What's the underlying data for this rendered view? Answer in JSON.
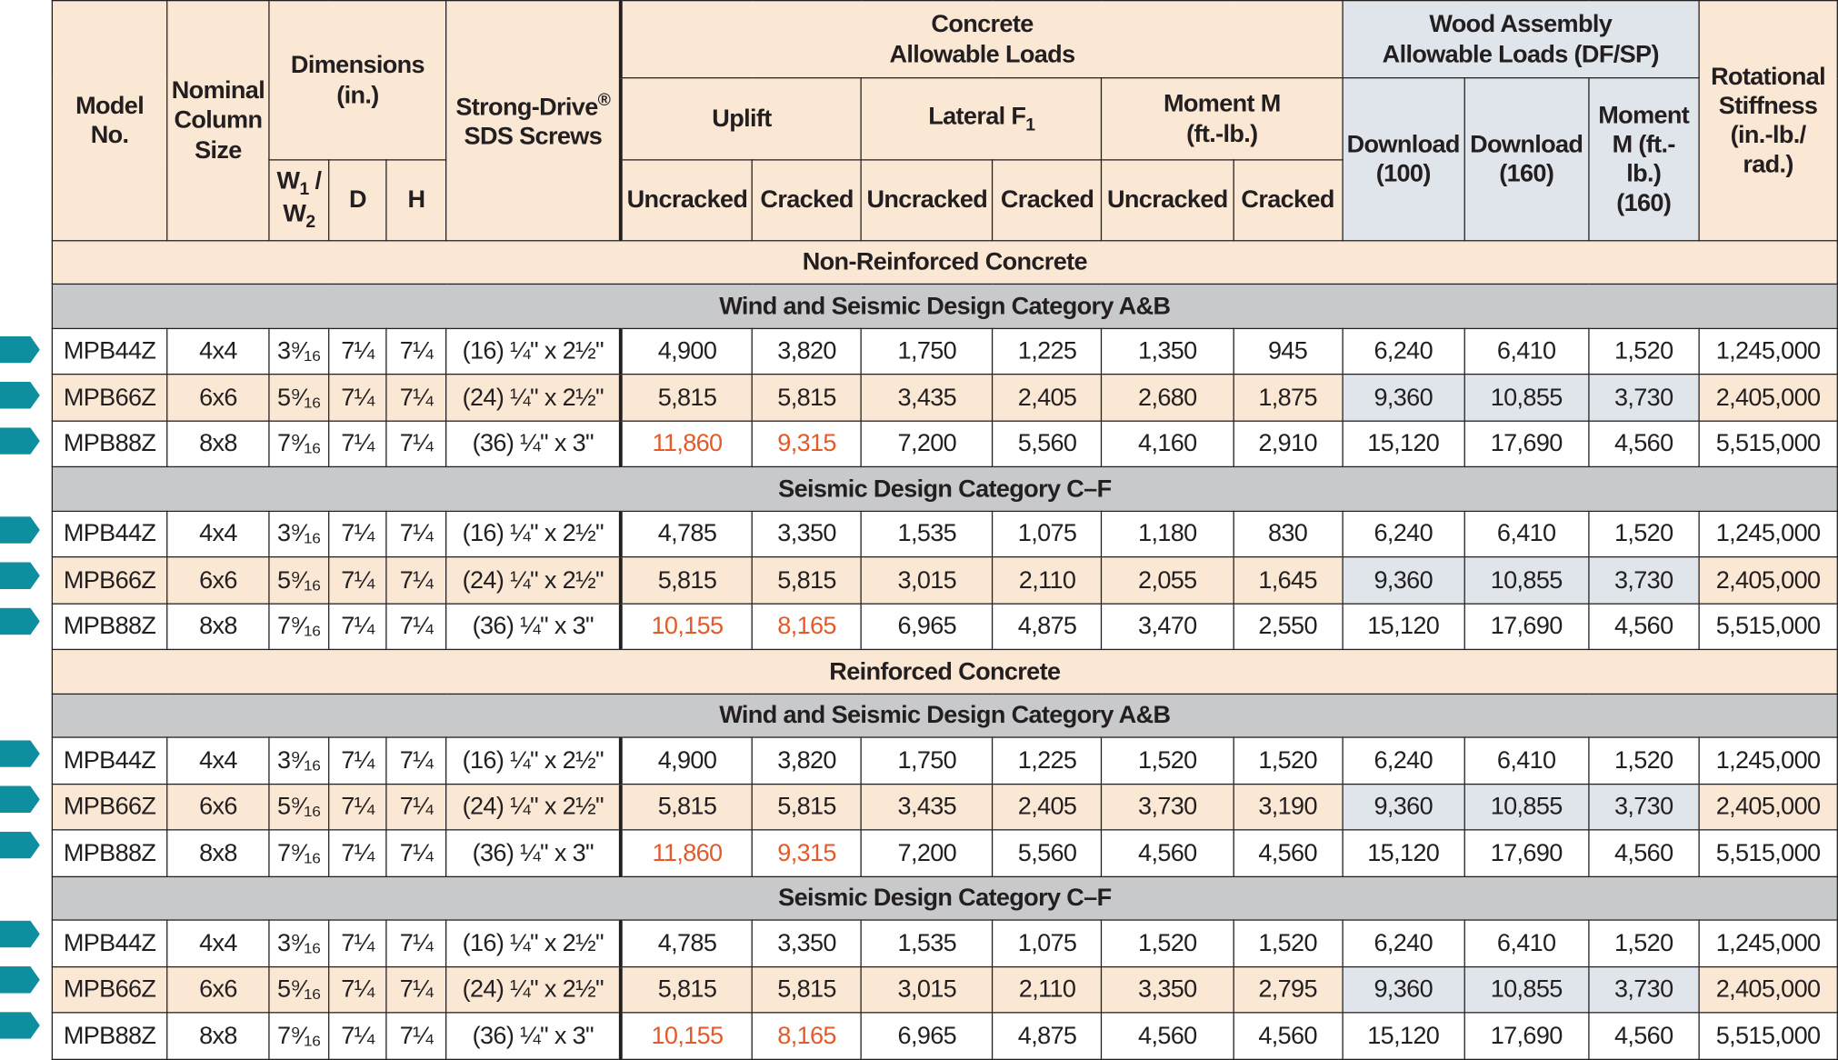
{
  "headers": {
    "model": "Model No.",
    "column": "Nominal Column Size",
    "dimensions": "Dimensions (in.)",
    "w": "W",
    "w1": "1",
    "w_sep": " / ",
    "w2": "2",
    "d": "D",
    "h": "H",
    "screws": "Strong-Drive",
    "screws_reg": "®",
    "screws2": "SDS Screws",
    "concrete_1": "Concrete",
    "concrete_2": "Allowable Loads",
    "uplift": "Uplift",
    "lateral": "Lateral F",
    "lateral_sub": "1",
    "moment": "Moment M (ft.-lb.)",
    "uncracked": "Uncracked",
    "cracked": "Cracked",
    "wood_1": "Wood Assembly",
    "wood_2": "Allowable Loads (DF/SP)",
    "download100": "Download (100)",
    "download160": "Download (160)",
    "wood_moment": "Moment M (ft.-lb.) (160)",
    "rot": "Rotational Stiffness (in.-lb./ rad.)"
  },
  "sections": [
    {
      "title": "Non-Reinforced Concrete",
      "groups": [
        {
          "title": "Wind and Seismic Design Category A&B",
          "rows": [
            {
              "model": "MPB44Z",
              "col": "4x4",
              "w": "3⁹⁄₁₆",
              "d": "7¼",
              "h": "7¼",
              "screws": "(16) ¼\" x 2½\"",
              "up_u": "4,900",
              "up_c": "3,820",
              "lat_u": "1,750",
              "lat_c": "1,225",
              "mom_u": "1,350",
              "mom_c": "945",
              "dl100": "6,240",
              "dl160": "6,410",
              "wm": "1,520",
              "rot": "1,245,000"
            },
            {
              "model": "MPB66Z",
              "col": "6x6",
              "w": "5⁹⁄₁₆",
              "d": "7¼",
              "h": "7¼",
              "screws": "(24) ¼\" x 2½\"",
              "up_u": "5,815",
              "up_c": "5,815",
              "lat_u": "3,435",
              "lat_c": "2,405",
              "mom_u": "2,680",
              "mom_c": "1,875",
              "dl100": "9,360",
              "dl160": "10,855",
              "wm": "3,730",
              "rot": "2,405,000"
            },
            {
              "model": "MPB88Z",
              "col": "8x8",
              "w": "7⁹⁄₁₆",
              "d": "7¼",
              "h": "7¼",
              "screws": "(36) ¼\" x 3\"",
              "up_u": "11,860",
              "up_c": "9,315",
              "lat_u": "7,200",
              "lat_c": "5,560",
              "mom_u": "4,160",
              "mom_c": "2,910",
              "dl100": "15,120",
              "dl160": "17,690",
              "wm": "4,560",
              "rot": "5,515,000"
            }
          ]
        },
        {
          "title": "Seismic Design Category C–F",
          "rows": [
            {
              "model": "MPB44Z",
              "col": "4x4",
              "w": "3⁹⁄₁₆",
              "d": "7¼",
              "h": "7¼",
              "screws": "(16) ¼\" x 2½\"",
              "up_u": "4,785",
              "up_c": "3,350",
              "lat_u": "1,535",
              "lat_c": "1,075",
              "mom_u": "1,180",
              "mom_c": "830",
              "dl100": "6,240",
              "dl160": "6,410",
              "wm": "1,520",
              "rot": "1,245,000"
            },
            {
              "model": "MPB66Z",
              "col": "6x6",
              "w": "5⁹⁄₁₆",
              "d": "7¼",
              "h": "7¼",
              "screws": "(24) ¼\" x 2½\"",
              "up_u": "5,815",
              "up_c": "5,815",
              "lat_u": "3,015",
              "lat_c": "2,110",
              "mom_u": "2,055",
              "mom_c": "1,645",
              "dl100": "9,360",
              "dl160": "10,855",
              "wm": "3,730",
              "rot": "2,405,000"
            },
            {
              "model": "MPB88Z",
              "col": "8x8",
              "w": "7⁹⁄₁₆",
              "d": "7¼",
              "h": "7¼",
              "screws": "(36) ¼\" x 3\"",
              "up_u": "10,155",
              "up_c": "8,165",
              "lat_u": "6,965",
              "lat_c": "4,875",
              "mom_u": "3,470",
              "mom_c": "2,550",
              "dl100": "15,120",
              "dl160": "17,690",
              "wm": "4,560",
              "rot": "5,515,000"
            }
          ]
        }
      ]
    },
    {
      "title": "Reinforced Concrete",
      "groups": [
        {
          "title": "Wind and Seismic Design Category A&B",
          "rows": [
            {
              "model": "MPB44Z",
              "col": "4x4",
              "w": "3⁹⁄₁₆",
              "d": "7¼",
              "h": "7¼",
              "screws": "(16) ¼\" x 2½\"",
              "up_u": "4,900",
              "up_c": "3,820",
              "lat_u": "1,750",
              "lat_c": "1,225",
              "mom_u": "1,520",
              "mom_c": "1,520",
              "dl100": "6,240",
              "dl160": "6,410",
              "wm": "1,520",
              "rot": "1,245,000"
            },
            {
              "model": "MPB66Z",
              "col": "6x6",
              "w": "5⁹⁄₁₆",
              "d": "7¼",
              "h": "7¼",
              "screws": "(24) ¼\" x 2½\"",
              "up_u": "5,815",
              "up_c": "5,815",
              "lat_u": "3,435",
              "lat_c": "2,405",
              "mom_u": "3,730",
              "mom_c": "3,190",
              "dl100": "9,360",
              "dl160": "10,855",
              "wm": "3,730",
              "rot": "2,405,000"
            },
            {
              "model": "MPB88Z",
              "col": "8x8",
              "w": "7⁹⁄₁₆",
              "d": "7¼",
              "h": "7¼",
              "screws": "(36) ¼\" x 3\"",
              "up_u": "11,860",
              "up_c": "9,315",
              "lat_u": "7,200",
              "lat_c": "5,560",
              "mom_u": "4,560",
              "mom_c": "4,560",
              "dl100": "15,120",
              "dl160": "17,690",
              "wm": "4,560",
              "rot": "5,515,000"
            }
          ]
        },
        {
          "title": "Seismic Design Category C–F",
          "rows": [
            {
              "model": "MPB44Z",
              "col": "4x4",
              "w": "3⁹⁄₁₆",
              "d": "7¼",
              "h": "7¼",
              "screws": "(16) ¼\" x 2½\"",
              "up_u": "4,785",
              "up_c": "3,350",
              "lat_u": "1,535",
              "lat_c": "1,075",
              "mom_u": "1,520",
              "mom_c": "1,520",
              "dl100": "6,240",
              "dl160": "6,410",
              "wm": "1,520",
              "rot": "1,245,000"
            },
            {
              "model": "MPB66Z",
              "col": "6x6",
              "w": "5⁹⁄₁₆",
              "d": "7¼",
              "h": "7¼",
              "screws": "(24) ¼\" x 2½\"",
              "up_u": "5,815",
              "up_c": "5,815",
              "lat_u": "3,015",
              "lat_c": "2,110",
              "mom_u": "3,350",
              "mom_c": "2,795",
              "dl100": "9,360",
              "dl160": "10,855",
              "wm": "3,730",
              "rot": "2,405,000"
            },
            {
              "model": "MPB88Z",
              "col": "8x8",
              "w": "7⁹⁄₁₆",
              "d": "7¼",
              "h": "7¼",
              "screws": "(36) ¼\" x 3\"",
              "up_u": "10,155",
              "up_c": "8,165",
              "lat_u": "6,965",
              "lat_c": "4,875",
              "mom_u": "4,560",
              "mom_c": "4,560",
              "dl100": "15,120",
              "dl160": "17,690",
              "wm": "4,560",
              "rot": "5,515,000"
            }
          ]
        }
      ]
    }
  ],
  "colors": {
    "header_peach": "#fae8d4",
    "header_blue": "#dfe5ea",
    "group_gray": "#c8c9cb",
    "highlight_red": "#e35a2b",
    "marker_teal": "#0e8fa0"
  },
  "icons": {
    "row_marker": "teal-arrow-tab-icon"
  }
}
